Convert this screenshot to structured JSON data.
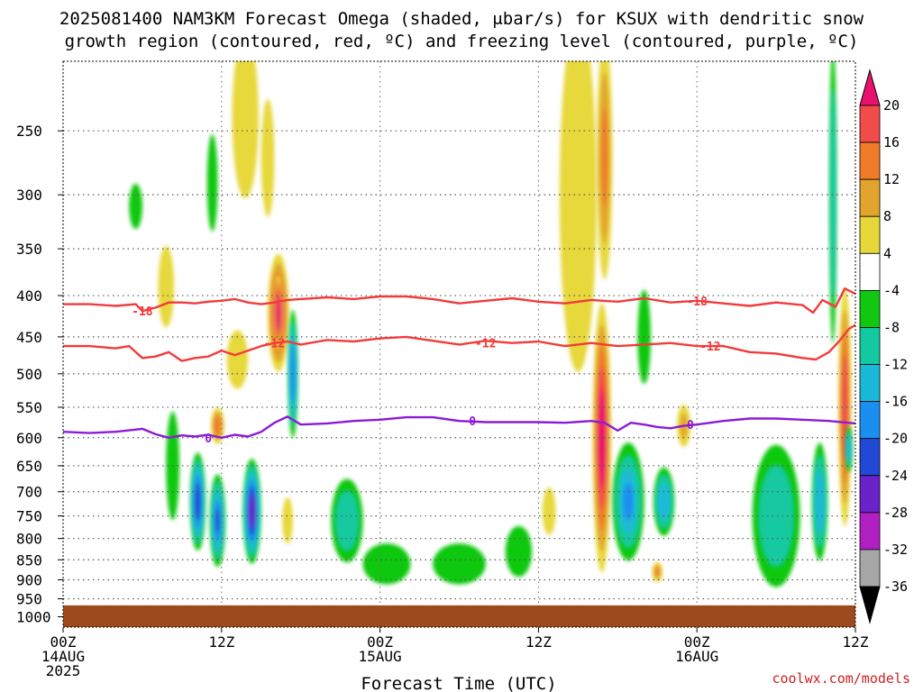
{
  "title": {
    "line1": "2025081400 NAM3KM Forecast Omega (shaded, μbar/s) for KSUX with dendritic snow",
    "line2": "growth region (contoured, red, ºC) and freezing level (contoured, purple, ºC)"
  },
  "credit": "coolwx.com/models",
  "chart_data": {
    "type": "heatmap",
    "xlabel": "Forecast Time (UTC)",
    "ylabel": "",
    "xlim": [
      0,
      60
    ],
    "y_scale": "log-pressure",
    "ylim": [
      1030,
      205
    ],
    "grid": true,
    "x_ticks": [
      {
        "hour": 0,
        "lines": [
          "00Z",
          "14AUG",
          "2025"
        ]
      },
      {
        "hour": 12,
        "lines": [
          "12Z"
        ]
      },
      {
        "hour": 24,
        "lines": [
          "00Z",
          "15AUG"
        ]
      },
      {
        "hour": 36,
        "lines": [
          "12Z"
        ]
      },
      {
        "hour": 48,
        "lines": [
          "00Z",
          "16AUG"
        ]
      },
      {
        "hour": 60,
        "lines": [
          "12Z"
        ]
      }
    ],
    "y_ticks": [
      250,
      300,
      350,
      400,
      450,
      500,
      550,
      600,
      650,
      700,
      750,
      800,
      850,
      900,
      950,
      1000
    ],
    "colorbar": {
      "labels": [
        20,
        16,
        12,
        8,
        4,
        -4,
        -8,
        -12,
        -16,
        -20,
        -24,
        -28,
        -32,
        -36
      ],
      "bins": [
        {
          "lo": 20,
          "hi": 24,
          "color": "#e8116e"
        },
        {
          "lo": 16,
          "hi": 20,
          "color": "#f24b4b"
        },
        {
          "lo": 12,
          "hi": 16,
          "color": "#f07c2a"
        },
        {
          "lo": 8,
          "hi": 12,
          "color": "#e3a42e"
        },
        {
          "lo": 4,
          "hi": 8,
          "color": "#e7d83a"
        },
        {
          "lo": -4,
          "hi": 4,
          "color": "#ffffff"
        },
        {
          "lo": -8,
          "hi": -4,
          "color": "#10c810"
        },
        {
          "lo": -12,
          "hi": -8,
          "color": "#12c9a0"
        },
        {
          "lo": -16,
          "hi": -12,
          "color": "#1ab9d9"
        },
        {
          "lo": -20,
          "hi": -16,
          "color": "#1b8ff0"
        },
        {
          "lo": -24,
          "hi": -20,
          "color": "#2149d6"
        },
        {
          "lo": -28,
          "hi": -24,
          "color": "#6a22c9"
        },
        {
          "lo": -32,
          "hi": -28,
          "color": "#b01fc2"
        },
        {
          "lo": -36,
          "hi": -32,
          "color": "#a6a6a6"
        }
      ],
      "top_arrow_color": "#e8116e",
      "bottom_arrow_color": "#000000"
    },
    "blobs": [
      {
        "hour": 13.8,
        "p": 240,
        "dh": 1.0,
        "dp": 55,
        "omega": 6
      },
      {
        "hour": 5.5,
        "p": 310,
        "dh": 0.5,
        "dp": 20,
        "omega": -6
      },
      {
        "hour": 7.8,
        "p": 390,
        "dh": 0.6,
        "dp": 45,
        "omega": 5
      },
      {
        "hour": 11.3,
        "p": 290,
        "dh": 0.4,
        "dp": 40,
        "omega": -6
      },
      {
        "hour": 15.5,
        "p": 270,
        "dh": 0.5,
        "dp": 45,
        "omega": 5
      },
      {
        "hour": 16.3,
        "p": 420,
        "dh": 0.8,
        "dp": 70,
        "omega": 22
      },
      {
        "hour": 16.3,
        "p": 420,
        "dh": 0.4,
        "dp": 45,
        "omega": 26
      },
      {
        "hour": 17.4,
        "p": 500,
        "dh": 0.4,
        "dp": 90,
        "omega": -18
      },
      {
        "hour": 13.2,
        "p": 480,
        "dh": 0.8,
        "dp": 40,
        "omega": 6
      },
      {
        "hour": 11.7,
        "p": 580,
        "dh": 0.5,
        "dp": 30,
        "omega": 14
      },
      {
        "hour": 8.3,
        "p": 650,
        "dh": 0.5,
        "dp": 100,
        "omega": -6
      },
      {
        "hour": 10.2,
        "p": 720,
        "dh": 0.6,
        "dp": 100,
        "omega": -22
      },
      {
        "hour": 11.7,
        "p": 760,
        "dh": 0.6,
        "dp": 100,
        "omega": -20
      },
      {
        "hour": 14.3,
        "p": 740,
        "dh": 0.7,
        "dp": 110,
        "omega": -26
      },
      {
        "hour": 17.0,
        "p": 760,
        "dh": 0.4,
        "dp": 50,
        "omega": 6
      },
      {
        "hour": 21.5,
        "p": 760,
        "dh": 1.2,
        "dp": 90,
        "omega": -10
      },
      {
        "hour": 24.5,
        "p": 860,
        "dh": 1.8,
        "dp": 50,
        "omega": -6
      },
      {
        "hour": 30.0,
        "p": 860,
        "dh": 2.0,
        "dp": 50,
        "omega": -6
      },
      {
        "hour": 34.5,
        "p": 830,
        "dh": 1.0,
        "dp": 60,
        "omega": -6
      },
      {
        "hour": 36.8,
        "p": 740,
        "dh": 0.5,
        "dp": 50,
        "omega": 5
      },
      {
        "hour": 39.0,
        "p": 300,
        "dh": 1.4,
        "dp": 140,
        "omega": 6
      },
      {
        "hour": 41.0,
        "p": 270,
        "dh": 0.6,
        "dp": 90,
        "omega": 12
      },
      {
        "hour": 40.8,
        "p": 600,
        "dh": 0.7,
        "dp": 220,
        "omega": 24
      },
      {
        "hour": 42.8,
        "p": 720,
        "dh": 1.2,
        "dp": 120,
        "omega": -16
      },
      {
        "hour": 45.5,
        "p": 720,
        "dh": 0.8,
        "dp": 70,
        "omega": -14
      },
      {
        "hour": 45.0,
        "p": 880,
        "dh": 0.4,
        "dp": 25,
        "omega": 12
      },
      {
        "hour": 47.0,
        "p": 580,
        "dh": 0.5,
        "dp": 35,
        "omega": 8
      },
      {
        "hour": 44.0,
        "p": 450,
        "dh": 0.5,
        "dp": 60,
        "omega": -6
      },
      {
        "hour": 54.0,
        "p": 750,
        "dh": 1.8,
        "dp": 150,
        "omega": -10
      },
      {
        "hour": 57.3,
        "p": 720,
        "dh": 0.6,
        "dp": 120,
        "omega": -15
      },
      {
        "hour": 58.3,
        "p": 300,
        "dh": 0.3,
        "dp": 120,
        "omega": -10
      },
      {
        "hour": 59.2,
        "p": 550,
        "dh": 0.5,
        "dp": 180,
        "omega": 18
      },
      {
        "hour": 59.5,
        "p": 620,
        "dh": 0.3,
        "dp": 40,
        "omega": -14
      }
    ],
    "contours": [
      {
        "label": "-18",
        "color": "#f23b3b",
        "hours": [
          0,
          2,
          4,
          5.5,
          6,
          7,
          8,
          9,
          10,
          11,
          12,
          13,
          14,
          15,
          16,
          17,
          18,
          20,
          22,
          24,
          26,
          28,
          30,
          32,
          34,
          36,
          38,
          40,
          42,
          44,
          46,
          48,
          50,
          52,
          54,
          56,
          56.8,
          57.5,
          58.5,
          59.2,
          60
        ],
        "p": [
          410,
          410,
          412,
          410,
          418,
          414,
          408,
          408,
          409,
          407,
          406,
          404,
          408,
          410,
          408,
          405,
          404,
          402,
          404,
          401,
          401,
          404,
          409,
          406,
          403,
          407,
          409,
          405,
          407,
          403,
          408,
          406,
          409,
          412,
          408,
          411,
          420,
          405,
          413,
          392,
          398
        ],
        "labels_at": [
          {
            "hour": 6.0,
            "p": 418
          },
          {
            "hour": 48.0,
            "p": 406
          }
        ]
      },
      {
        "label": "-12",
        "color": "#f23b3b",
        "hours": [
          0,
          2,
          4,
          5,
          6,
          7,
          8,
          9,
          10,
          11,
          12,
          13,
          14,
          15,
          16,
          17,
          18,
          20,
          22,
          24,
          26,
          28,
          30,
          32,
          34,
          36,
          38,
          40,
          42,
          44,
          46,
          48,
          50,
          52,
          54,
          56,
          57,
          58,
          58.8,
          59.5,
          60
        ],
        "p": [
          462,
          462,
          465,
          462,
          478,
          476,
          470,
          482,
          478,
          476,
          468,
          474,
          468,
          462,
          458,
          456,
          460,
          454,
          456,
          452,
          450,
          455,
          460,
          455,
          458,
          456,
          462,
          458,
          462,
          460,
          458,
          462,
          462,
          470,
          472,
          478,
          480,
          470,
          455,
          440,
          435
        ],
        "labels_at": [
          {
            "hour": 16.0,
            "p": 458
          },
          {
            "hour": 32.0,
            "p": 458
          },
          {
            "hour": 49.0,
            "p": 462
          }
        ]
      },
      {
        "label": "0",
        "color": "#8c1bd6",
        "hours": [
          0,
          2,
          4,
          6,
          7,
          8,
          9,
          10,
          11,
          12,
          13,
          14,
          15,
          16,
          17,
          18,
          20,
          22,
          24,
          26,
          28,
          30,
          32,
          34,
          36,
          38,
          40,
          41,
          42,
          43,
          44,
          45,
          46,
          47,
          48,
          50,
          52,
          54,
          56,
          58,
          60
        ],
        "p": [
          590,
          592,
          590,
          585,
          594,
          600,
          596,
          598,
          595,
          600,
          595,
          598,
          590,
          575,
          565,
          578,
          576,
          572,
          570,
          566,
          566,
          572,
          574,
          574,
          574,
          575,
          572,
          575,
          588,
          575,
          578,
          582,
          584,
          580,
          578,
          572,
          568,
          568,
          570,
          572,
          576
        ],
        "labels_at": [
          {
            "hour": 11.0,
            "p": 600
          },
          {
            "hour": 31.0,
            "p": 572
          },
          {
            "hour": 47.5,
            "p": 578
          }
        ]
      }
    ],
    "ground_top_p": 968
  }
}
